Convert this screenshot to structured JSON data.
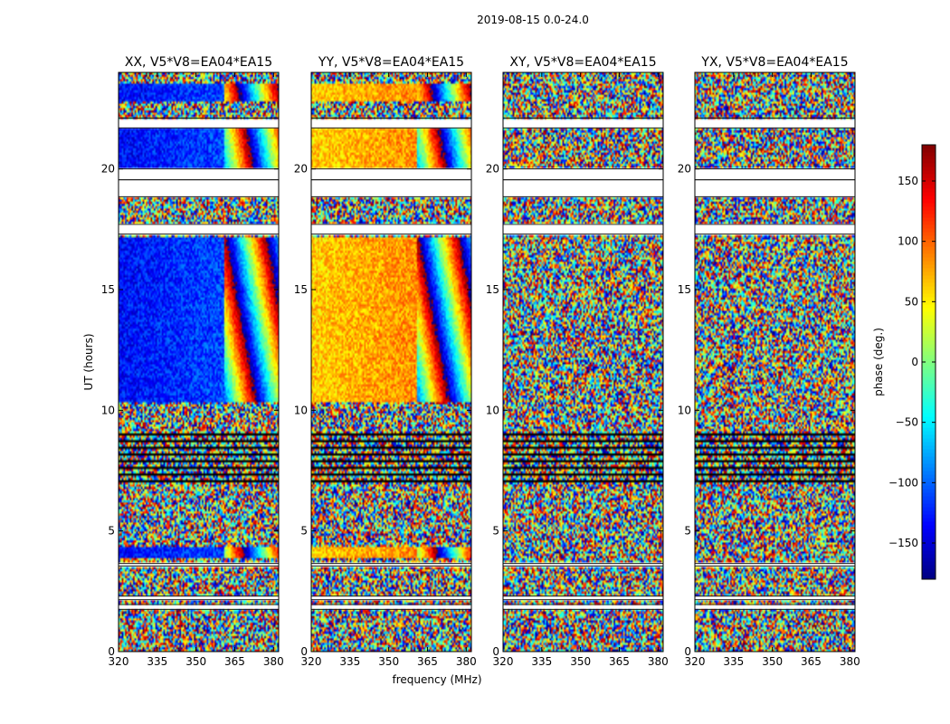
{
  "chart_data": {
    "type": "heatmap",
    "title": "2019-08-15 0.0-24.0",
    "xlabel": "frequency (MHz)",
    "ylabel": "UT (hours)",
    "xlim": [
      320,
      382
    ],
    "ylim": [
      0,
      24
    ],
    "xticks": [
      320,
      335,
      350,
      365,
      380
    ],
    "yticks": [
      0,
      5,
      10,
      15,
      20
    ],
    "panels": [
      {
        "title": "XX, V5*V8=EA04*EA15",
        "dominant_phase_deg": -125
      },
      {
        "title": "YY, V5*V8=EA04*EA15",
        "dominant_phase_deg": 70
      },
      {
        "title": "XY, V5*V8=EA04*EA15",
        "dominant_phase_deg": null
      },
      {
        "title": "YX, V5*V8=EA04*EA15",
        "dominant_phase_deg": null
      }
    ],
    "coherent_band_mhz": [
      320,
      361
    ],
    "blank_ut_intervals": [
      [
        1.75,
        1.95
      ],
      [
        2.15,
        2.3
      ],
      [
        3.55,
        3.65
      ],
      [
        19.55,
        20.0
      ],
      [
        18.85,
        19.55
      ],
      [
        17.3,
        17.7
      ],
      [
        21.7,
        22.1
      ]
    ],
    "colorbar": {
      "label": "phase (deg.)",
      "range": [
        -180,
        180
      ],
      "ticks": [
        -150,
        -100,
        -50,
        0,
        50,
        100,
        150
      ],
      "tick_labels": [
        "−150",
        "−100",
        "−50",
        "0",
        "50",
        "100",
        "150"
      ],
      "colormap": "jet"
    }
  }
}
